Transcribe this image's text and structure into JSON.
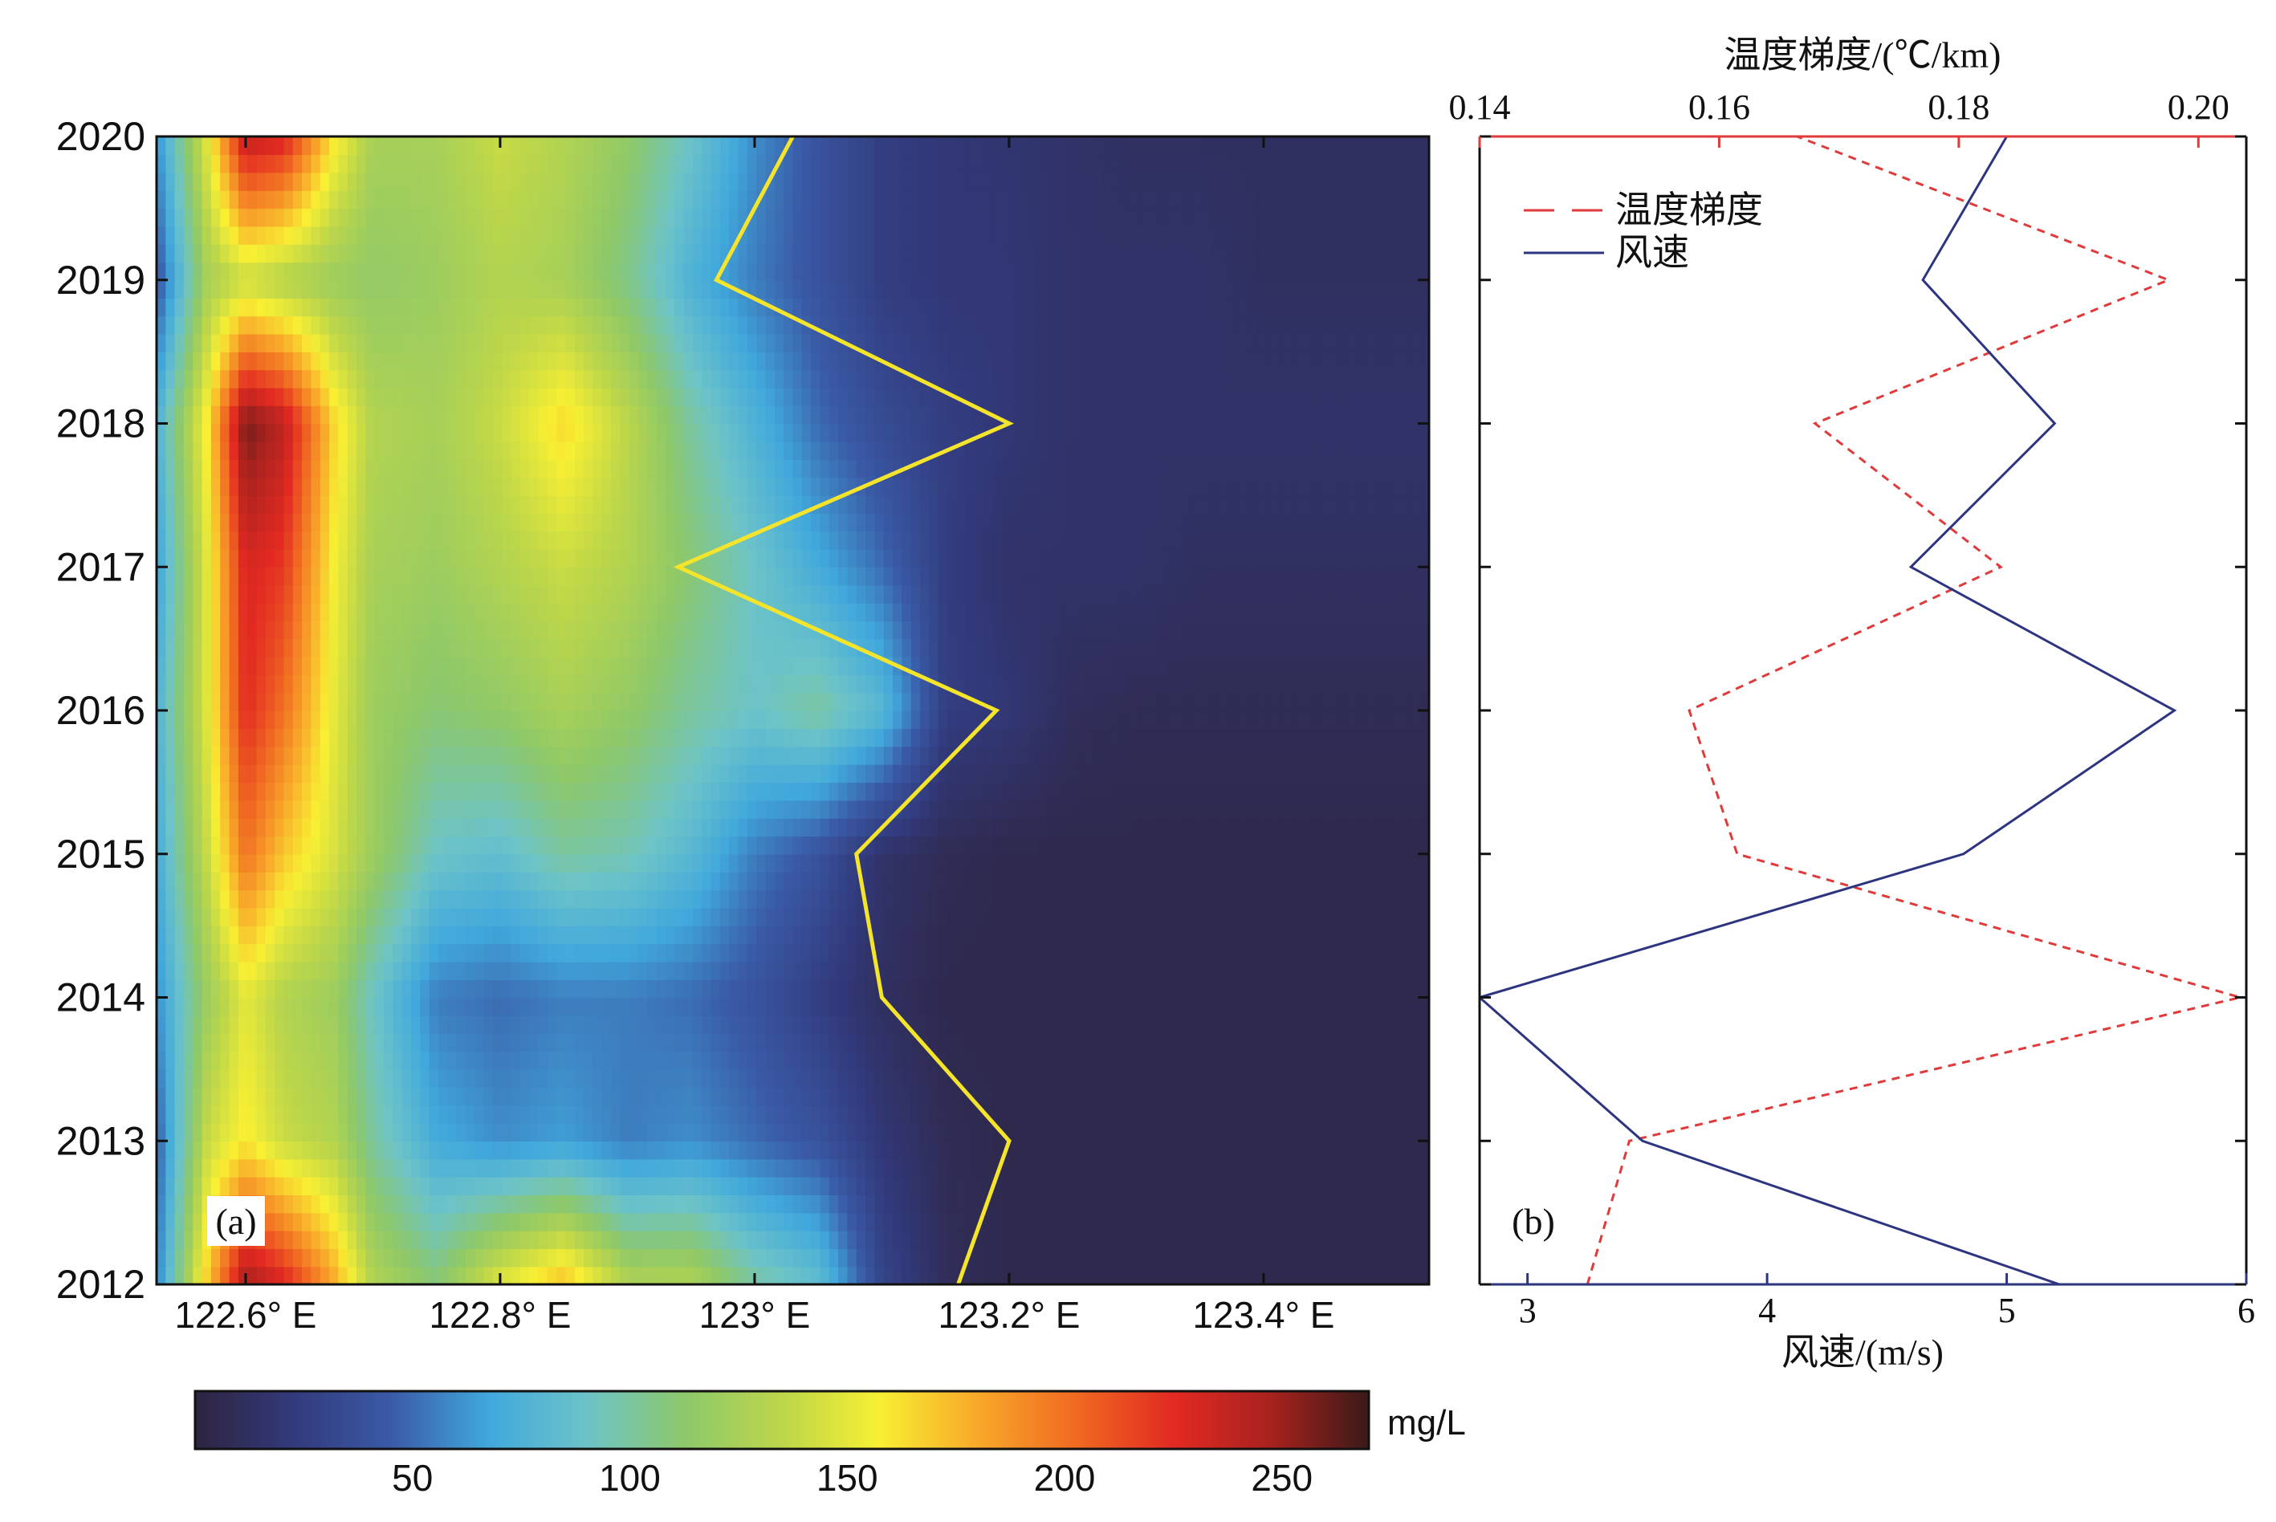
{
  "chart_data": [
    {
      "type": "heatmap",
      "panel_label": "(a)",
      "xlabel": "",
      "ylabel": "",
      "x_ticks": [
        {
          "value": 122.6,
          "label": "122.6° E"
        },
        {
          "value": 122.8,
          "label": "122.8° E"
        },
        {
          "value": 123.0,
          "label": "123° E"
        },
        {
          "value": 123.2,
          "label": "123.2° E"
        },
        {
          "value": 123.4,
          "label": "123.4° E"
        }
      ],
      "y_ticks": [
        "2012",
        "2013",
        "2014",
        "2015",
        "2016",
        "2017",
        "2018",
        "2019",
        "2020"
      ],
      "xlim": [
        122.53,
        123.53
      ],
      "ylim": [
        2012,
        2020
      ],
      "colorbar": {
        "unit": "mg/L",
        "range": [
          0,
          270
        ],
        "ticks": [
          {
            "value": 50,
            "label": "50"
          },
          {
            "value": 100,
            "label": "100"
          },
          {
            "value": 150,
            "label": "150"
          },
          {
            "value": 200,
            "label": "200"
          },
          {
            "value": 250,
            "label": "250"
          }
        ],
        "colors": [
          "#2e2440",
          "#323a7c",
          "#3a5aa6",
          "#41a8dc",
          "#6cc3c8",
          "#8dc86a",
          "#bcd64a",
          "#f8ef33",
          "#f8a82a",
          "#f06a22",
          "#e22a22",
          "#a8221e",
          "#3a1a18"
        ]
      },
      "longitude_columns": [
        122.53,
        122.57,
        122.6,
        122.63,
        122.67,
        122.7,
        122.75,
        122.8,
        122.85,
        122.9,
        122.95,
        123.0,
        123.05,
        123.1,
        123.15,
        123.2,
        123.25,
        123.3,
        123.35,
        123.4,
        123.45,
        123.53
      ],
      "concentration_grid": [
        [
          55,
          170,
          250,
          230,
          180,
          130,
          110,
          150,
          175,
          130,
          130,
          100,
          85,
          30,
          10,
          5,
          5,
          5,
          5,
          5,
          5,
          5
        ],
        [
          45,
          140,
          160,
          140,
          130,
          100,
          70,
          60,
          65,
          55,
          60,
          50,
          40,
          20,
          8,
          5,
          5,
          5,
          5,
          5,
          5,
          5
        ],
        [
          60,
          120,
          150,
          130,
          120,
          90,
          55,
          50,
          55,
          55,
          50,
          40,
          25,
          12,
          5,
          5,
          5,
          5,
          5,
          5,
          5,
          5
        ],
        [
          70,
          140,
          200,
          170,
          145,
          120,
          90,
          85,
          100,
          95,
          80,
          55,
          40,
          15,
          8,
          5,
          5,
          5,
          5,
          5,
          5,
          5
        ],
        [
          75,
          150,
          225,
          200,
          150,
          120,
          110,
          115,
          125,
          115,
          100,
          90,
          100,
          80,
          25,
          20,
          10,
          8,
          8,
          8,
          8,
          8
        ],
        [
          65,
          150,
          230,
          220,
          155,
          125,
          120,
          130,
          140,
          130,
          110,
          90,
          70,
          50,
          25,
          15,
          15,
          15,
          12,
          12,
          12,
          12
        ],
        [
          75,
          160,
          260,
          240,
          165,
          130,
          125,
          140,
          165,
          135,
          100,
          75,
          50,
          35,
          25,
          20,
          15,
          15,
          15,
          15,
          15,
          15
        ],
        [
          40,
          125,
          140,
          130,
          120,
          115,
          120,
          130,
          125,
          105,
          75,
          55,
          40,
          25,
          20,
          20,
          15,
          15,
          15,
          12,
          12,
          12
        ],
        [
          60,
          150,
          240,
          230,
          160,
          125,
          125,
          140,
          130,
          115,
          90,
          60,
          40,
          25,
          20,
          18,
          15,
          12,
          12,
          12,
          12,
          12
        ]
      ],
      "boundary_line": {
        "color": "#f5e42c",
        "points": [
          [
            123.16,
            2012
          ],
          [
            123.2,
            2013
          ],
          [
            123.1,
            2014
          ],
          [
            123.08,
            2015
          ],
          [
            123.19,
            2016
          ],
          [
            122.94,
            2017
          ],
          [
            123.2,
            2018
          ],
          [
            122.97,
            2019
          ],
          [
            123.03,
            2020
          ]
        ]
      }
    },
    {
      "type": "line",
      "panel_label": "(b)",
      "xlabel": "风速/(m/s)",
      "x_ticks": [
        "3",
        "4",
        "5",
        "6"
      ],
      "xlim": [
        2.8,
        6
      ],
      "top_xlabel": "温度梯度/(℃/km)",
      "top_x_ticks": [
        "0.14",
        "0.16",
        "0.18",
        "0.20"
      ],
      "top_xlim": [
        0.14,
        0.204
      ],
      "ylim": [
        2012,
        2020
      ],
      "y": [
        2012,
        2013,
        2014,
        2015,
        2016,
        2017,
        2018,
        2019,
        2020
      ],
      "legend_position": "top-left",
      "series": [
        {
          "name": "温度梯度",
          "axis": "top",
          "style": "dashed",
          "color": "#e03a3a",
          "values": [
            0.149,
            0.1525,
            0.2035,
            0.1615,
            0.1575,
            0.1835,
            0.168,
            0.1975,
            0.1665
          ]
        },
        {
          "name": "风速",
          "axis": "bottom",
          "style": "solid",
          "color": "#2e3580",
          "values": [
            5.22,
            3.48,
            2.8,
            4.82,
            5.7,
            4.6,
            5.2,
            4.65,
            5.0
          ]
        }
      ]
    }
  ]
}
